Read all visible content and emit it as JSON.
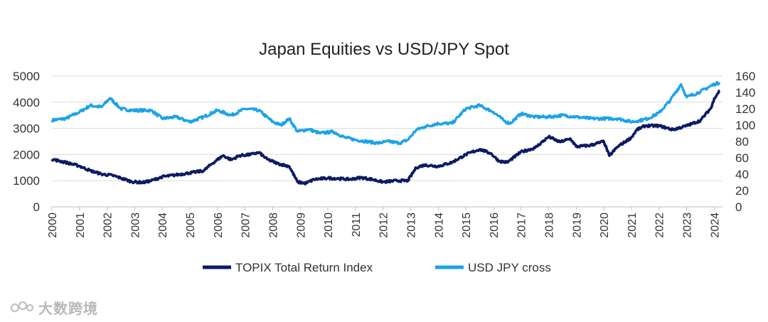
{
  "chart_data": {
    "type": "line",
    "title": "Japan Equities vs USD/JPY Spot",
    "xlabel": "",
    "ylabel_left": "",
    "ylabel_right": "",
    "x_ticks": [
      "2000",
      "2001",
      "2002",
      "2003",
      "2004",
      "2005",
      "2006",
      "2007",
      "2008",
      "2009",
      "2010",
      "2011",
      "2012",
      "2013",
      "2014",
      "2015",
      "2016",
      "2017",
      "2018",
      "2019",
      "2020",
      "2021",
      "2022",
      "2023",
      "2024"
    ],
    "x_range": [
      2000,
      2024.3
    ],
    "y_left": {
      "ylim": [
        0,
        5000
      ],
      "ticks": [
        "0",
        "1000",
        "2000",
        "3000",
        "4000",
        "5000"
      ]
    },
    "y_right": {
      "ylim": [
        0,
        160
      ],
      "ticks": [
        "0",
        "20",
        "40",
        "60",
        "80",
        "100",
        "120",
        "140",
        "160"
      ]
    },
    "grid": "horizontal",
    "legend_position": "bottom",
    "series": [
      {
        "name": "TOPIX Total Return Index",
        "axis": "left",
        "color": "#0d1a63",
        "x": [
          2000,
          2000.5,
          2001,
          2001.4,
          2001.8,
          2002.2,
          2002.5,
          2002.9,
          2003.3,
          2003.6,
          2004,
          2004.5,
          2005,
          2005.5,
          2005.8,
          2006.2,
          2006.5,
          2006.8,
          2007.2,
          2007.5,
          2007.8,
          2008.2,
          2008.6,
          2008.9,
          2009.2,
          2009.5,
          2010,
          2010.4,
          2010.8,
          2011.2,
          2011.6,
          2012,
          2012.5,
          2012.9,
          2013.2,
          2013.5,
          2014,
          2014.5,
          2015,
          2015.5,
          2015.9,
          2016.2,
          2016.5,
          2017,
          2017.5,
          2018,
          2018.4,
          2018.8,
          2019,
          2019.5,
          2020,
          2020.2,
          2020.5,
          2021,
          2021.2,
          2021.5,
          2022,
          2022.5,
          2023,
          2023.5,
          2023.9,
          2024,
          2024.2
        ],
        "values": [
          1820,
          1700,
          1560,
          1380,
          1250,
          1200,
          1100,
          960,
          930,
          1000,
          1150,
          1220,
          1300,
          1380,
          1650,
          1960,
          1800,
          1960,
          2000,
          2080,
          1820,
          1650,
          1550,
          950,
          900,
          1050,
          1100,
          1080,
          1050,
          1120,
          1050,
          950,
          1000,
          1000,
          1500,
          1600,
          1550,
          1700,
          2000,
          2200,
          2050,
          1750,
          1700,
          2100,
          2250,
          2680,
          2480,
          2600,
          2300,
          2350,
          2500,
          1950,
          2300,
          2650,
          2950,
          3100,
          3100,
          2950,
          3100,
          3300,
          3800,
          4150,
          4450
        ]
      },
      {
        "name": "USD JPY cross",
        "axis": "right",
        "color": "#1aa3e8",
        "x": [
          2000,
          2000.5,
          2001,
          2001.4,
          2001.8,
          2002.1,
          2002.5,
          2002.9,
          2003.3,
          2003.6,
          2004,
          2004.5,
          2005,
          2005.5,
          2006,
          2006.5,
          2007,
          2007.5,
          2008,
          2008.3,
          2008.6,
          2008.9,
          2009.3,
          2009.7,
          2010.2,
          2010.6,
          2011,
          2011.4,
          2011.8,
          2012.2,
          2012.6,
          2012.9,
          2013.2,
          2013.5,
          2014,
          2014.5,
          2015,
          2015.5,
          2016,
          2016.4,
          2016.6,
          2017,
          2017.5,
          2018,
          2018.5,
          2019,
          2019.5,
          2020,
          2020.5,
          2021,
          2021.2,
          2021.6,
          2022,
          2022.4,
          2022.8,
          2023,
          2023.5,
          2024,
          2024.2
        ],
        "values": [
          106,
          108,
          116,
          124,
          122,
          133,
          120,
          118,
          118,
          118,
          108,
          110,
          104,
          110,
          118,
          112,
          120,
          118,
          104,
          100,
          108,
          92,
          95,
          90,
          92,
          85,
          82,
          80,
          78,
          80,
          78,
          82,
          94,
          98,
          102,
          102,
          120,
          124,
          116,
          105,
          102,
          114,
          110,
          110,
          112,
          110,
          108,
          108,
          108,
          104,
          105,
          108,
          115,
          130,
          150,
          134,
          141,
          150,
          152
        ]
      }
    ]
  },
  "legend": {
    "items": [
      {
        "label": "TOPIX Total Return Index",
        "color": "#0d1a63"
      },
      {
        "label": "USD JPY cross",
        "color": "#1aa3e8"
      }
    ]
  },
  "watermark": {
    "text": "大数跨境"
  }
}
